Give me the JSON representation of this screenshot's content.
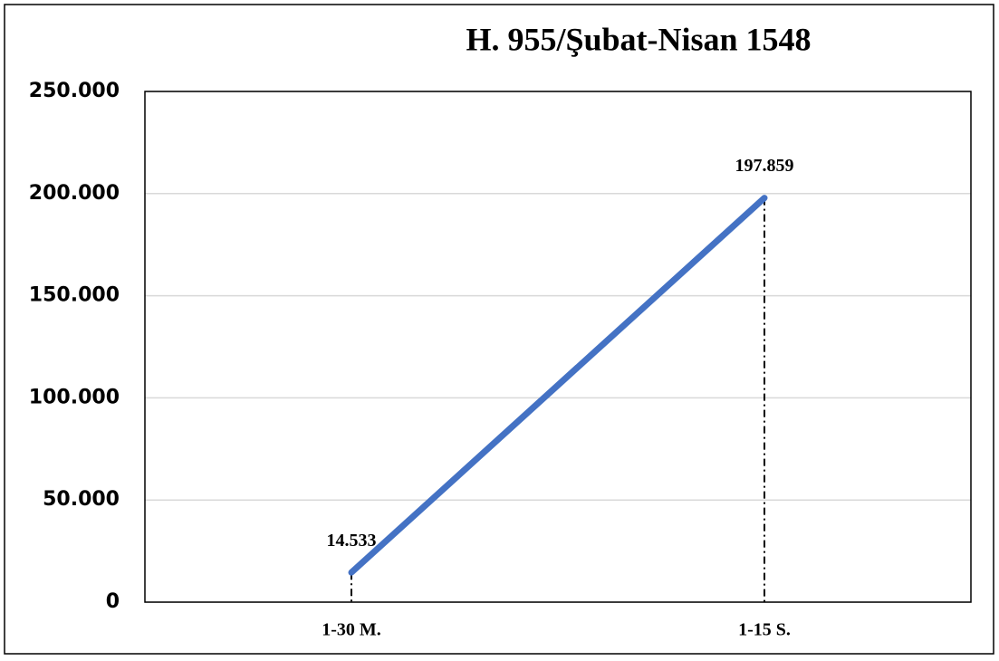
{
  "chart_data": {
    "type": "line",
    "title": "H. 955/Şubat-Nisan 1548",
    "categories": [
      "1-30 M.",
      "1-15 S."
    ],
    "series": [
      {
        "name": "H. 955/Şubat-Nisan 1548",
        "color": "#4472c4",
        "values": [
          14533,
          197859
        ],
        "value_labels": [
          "14.533",
          "197.859"
        ]
      }
    ],
    "ylim": [
      0,
      250000
    ],
    "yticks": [
      0,
      {
        "value": 50000,
        "label": "50.000"
      },
      {
        "value": 100000,
        "label": "100.000"
      },
      {
        "value": 150000,
        "label": "150.000"
      },
      {
        "value": 200000,
        "label": "200.000"
      },
      {
        "value": 250000,
        "label": "250.000"
      }
    ],
    "grid": true,
    "drop_lines": true
  }
}
